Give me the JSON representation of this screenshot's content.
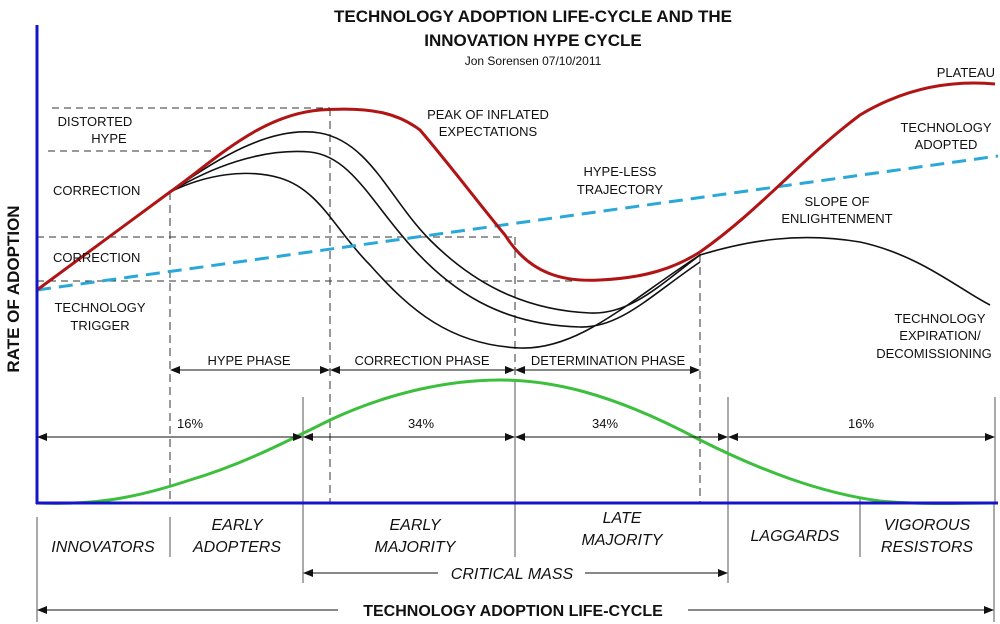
{
  "title": {
    "line1": "TECHNOLOGY ADOPTION LIFE-CYCLE AND THE",
    "line2": "INNOVATION HYPE CYCLE",
    "author": "Jon Sorensen 07/10/2011"
  },
  "y_axis_label": "RATE OF ADOPTION",
  "left_labels": {
    "distorted_hype": [
      "DISTORTED",
      "HYPE"
    ],
    "correction_1": "CORRECTION",
    "correction_2": "CORRECTION",
    "technology_trigger": [
      "TECHNOLOGY",
      "TRIGGER"
    ]
  },
  "curve_labels": {
    "peak": [
      "PEAK OF INFLATED",
      "EXPECTATIONS"
    ],
    "hype_less": [
      "HYPE-LESS",
      "TRAJECTORY"
    ],
    "plateau": "PLATEAU",
    "technology_adopted": [
      "TECHNOLOGY",
      "ADOPTED"
    ],
    "slope": [
      "SLOPE OF",
      "ENLIGHTENMENT"
    ],
    "expiration": [
      "TECHNOLOGY",
      "EXPIRATION/",
      "DECOMISSIONING"
    ]
  },
  "phases": [
    "HYPE PHASE",
    "CORRECTION PHASE",
    "DETERMINATION PHASE"
  ],
  "percentages": [
    "16%",
    "34%",
    "34%",
    "16%"
  ],
  "segments": {
    "innovators": [
      "INNOVATORS"
    ],
    "early_adopters": [
      "EARLY",
      "ADOPTERS"
    ],
    "early_majority": [
      "EARLY",
      "MAJORITY"
    ],
    "late_majority": [
      "LATE",
      "MAJORITY"
    ],
    "laggards": [
      "LAGGARDS"
    ],
    "vigorous_resistors": [
      "VIGOROUS",
      "RESISTORS"
    ]
  },
  "critical_mass": "CRITICAL MASS",
  "lifecycle_label": "TECHNOLOGY ADOPTION LIFE-CYCLE",
  "colors": {
    "axis": "#1414c8",
    "hype_curve": "#b01414",
    "hype_less": "#2aa8d8",
    "bell_curve": "#3cbf3c",
    "alt_curves": "#111111",
    "guides": "#333333"
  }
}
